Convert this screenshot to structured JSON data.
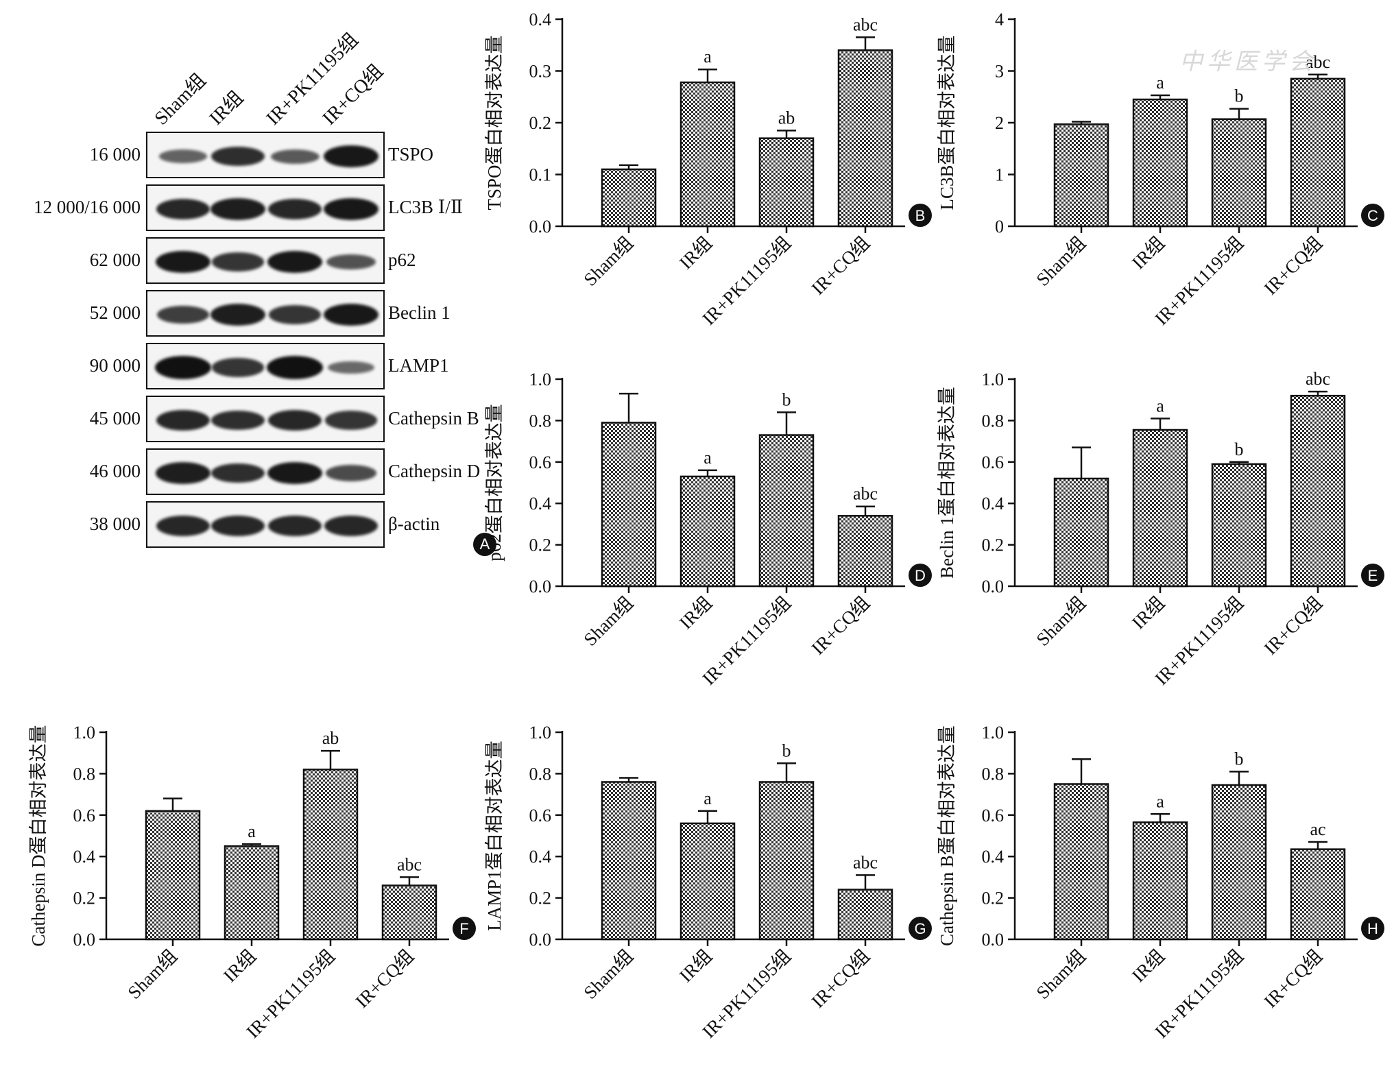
{
  "panel_a": {
    "letter": "A",
    "lanes": [
      "Sham组",
      "IR组",
      "IR+PK11195组",
      "IR+CQ组"
    ],
    "rows": [
      {
        "mw": "16 000",
        "protein": "TSPO",
        "bands": [
          0.45,
          0.8,
          0.5,
          0.95
        ]
      },
      {
        "mw": "12 000/16 000",
        "protein": "LC3B Ⅰ/Ⅱ",
        "bands": [
          0.85,
          0.9,
          0.85,
          0.95
        ]
      },
      {
        "mw": "62 000",
        "protein": "p62",
        "bands": [
          0.95,
          0.75,
          0.95,
          0.55
        ]
      },
      {
        "mw": "52 000",
        "protein": "Beclin 1",
        "bands": [
          0.7,
          0.9,
          0.75,
          0.95
        ]
      },
      {
        "mw": "90 000",
        "protein": "LAMP1",
        "bands": [
          1.0,
          0.75,
          1.0,
          0.4
        ]
      },
      {
        "mw": "45 000",
        "protein": "Cathepsin B",
        "bands": [
          0.85,
          0.8,
          0.85,
          0.75
        ]
      },
      {
        "mw": "46 000",
        "protein": "Cathepsin D",
        "bands": [
          0.9,
          0.8,
          0.95,
          0.6
        ]
      },
      {
        "mw": "38 000",
        "protein": "β-actin",
        "bands": [
          0.85,
          0.85,
          0.85,
          0.85
        ]
      }
    ]
  },
  "watermark": "中华医学会",
  "chart_data": [
    {
      "id": "B",
      "letter": "B",
      "type": "bar",
      "categories": [
        "Sham组",
        "IR组",
        "IR+PK11195组",
        "IR+CQ组"
      ],
      "values": [
        0.11,
        0.278,
        0.17,
        0.34
      ],
      "errors": [
        0.008,
        0.025,
        0.015,
        0.025
      ],
      "annotations": [
        "",
        "a",
        "ab",
        "abc"
      ],
      "ylabel": "TSPO蛋白相对表达量",
      "ylim": [
        0,
        0.4
      ],
      "yticks": [
        "0.0",
        "0.1",
        "0.2",
        "0.3",
        "0.4"
      ]
    },
    {
      "id": "C",
      "letter": "C",
      "type": "bar",
      "categories": [
        "Sham组",
        "IR组",
        "IR+PK11195组",
        "IR+CQ组"
      ],
      "values": [
        1.97,
        2.45,
        2.07,
        2.85
      ],
      "errors": [
        0.05,
        0.08,
        0.2,
        0.08
      ],
      "annotations": [
        "",
        "a",
        "b",
        "abc"
      ],
      "ylabel": "LC3B蛋白相对表达量",
      "ylim": [
        0,
        4
      ],
      "yticks": [
        "0",
        "1",
        "2",
        "3",
        "4"
      ]
    },
    {
      "id": "D",
      "letter": "D",
      "type": "bar",
      "categories": [
        "Sham组",
        "IR组",
        "IR+PK11195组",
        "IR+CQ组"
      ],
      "values": [
        0.79,
        0.53,
        0.73,
        0.34
      ],
      "errors": [
        0.14,
        0.03,
        0.11,
        0.045
      ],
      "annotations": [
        "",
        "a",
        "b",
        "abc"
      ],
      "ylabel": "p62蛋白相对表达量",
      "ylim": [
        0,
        1.0
      ],
      "yticks": [
        "0.0",
        "0.2",
        "0.4",
        "0.6",
        "0.8",
        "1.0"
      ]
    },
    {
      "id": "E",
      "letter": "E",
      "type": "bar",
      "categories": [
        "Sham组",
        "IR组",
        "IR+PK11195组",
        "IR+CQ组"
      ],
      "values": [
        0.52,
        0.755,
        0.59,
        0.92
      ],
      "errors": [
        0.15,
        0.055,
        0.01,
        0.02
      ],
      "annotations": [
        "",
        "a",
        "b",
        "abc"
      ],
      "ylabel": "Beclin 1蛋白相对表达量",
      "ylim": [
        0,
        1.0
      ],
      "yticks": [
        "0.0",
        "0.2",
        "0.4",
        "0.6",
        "0.8",
        "1.0"
      ]
    },
    {
      "id": "F",
      "letter": "F",
      "type": "bar",
      "categories": [
        "Sham组",
        "IR组",
        "IR+PK11195组",
        "IR+CQ组"
      ],
      "values": [
        0.62,
        0.45,
        0.82,
        0.26
      ],
      "errors": [
        0.06,
        0.01,
        0.09,
        0.04
      ],
      "annotations": [
        "",
        "a",
        "ab",
        "abc"
      ],
      "ylabel": "Cathepsin D蛋白相对表达量",
      "ylim": [
        0,
        1.0
      ],
      "yticks": [
        "0.0",
        "0.2",
        "0.4",
        "0.6",
        "0.8",
        "1.0"
      ]
    },
    {
      "id": "G",
      "letter": "G",
      "type": "bar",
      "categories": [
        "Sham组",
        "IR组",
        "IR+PK11195组",
        "IR+CQ组"
      ],
      "values": [
        0.76,
        0.56,
        0.76,
        0.24
      ],
      "errors": [
        0.02,
        0.06,
        0.09,
        0.07
      ],
      "annotations": [
        "",
        "a",
        "b",
        "abc"
      ],
      "ylabel": "LAMP1蛋白相对表达量",
      "ylim": [
        0,
        1.0
      ],
      "yticks": [
        "0.0",
        "0.2",
        "0.4",
        "0.6",
        "0.8",
        "1.0"
      ]
    },
    {
      "id": "H",
      "letter": "H",
      "type": "bar",
      "categories": [
        "Sham组",
        "IR组",
        "IR+PK11195组",
        "IR+CQ组"
      ],
      "values": [
        0.75,
        0.565,
        0.745,
        0.435
      ],
      "errors": [
        0.12,
        0.04,
        0.065,
        0.035
      ],
      "annotations": [
        "",
        "a",
        "b",
        "ac"
      ],
      "ylabel": "Cathepsin B蛋白相对表达量",
      "ylim": [
        0,
        1.0
      ],
      "yticks": [
        "0.0",
        "0.2",
        "0.4",
        "0.6",
        "0.8",
        "1.0"
      ]
    }
  ]
}
